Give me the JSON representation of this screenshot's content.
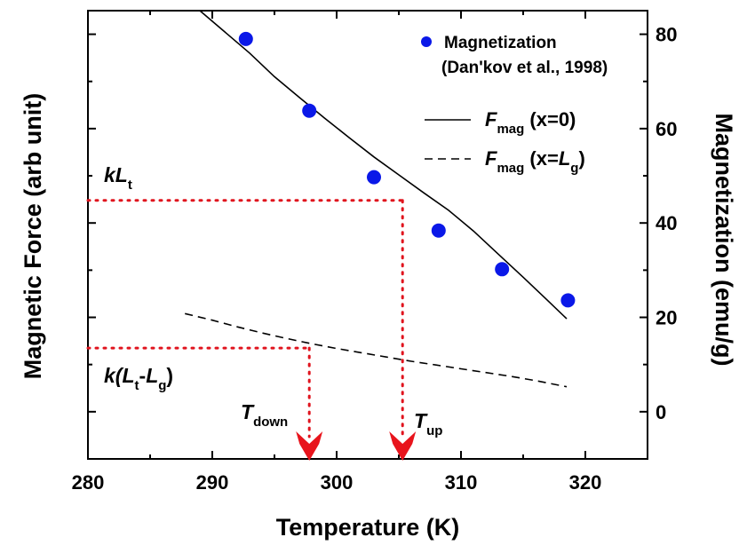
{
  "chart_data": {
    "type": "line",
    "xlabel": "Temperature (K)",
    "ylabel_left": "Magnetic Force (arb unit)",
    "ylabel_right": "Magnetization (emu/g)",
    "xlim": [
      280,
      325
    ],
    "ylim_right": [
      -10,
      85
    ],
    "x_ticks": [
      280,
      290,
      300,
      310,
      320
    ],
    "y_right_ticks": [
      0,
      20,
      40,
      60,
      80
    ],
    "series": [
      {
        "name": "Magnetization",
        "source": "(Dan'kov et al., 1998)",
        "kind": "scatter",
        "color": "#0a18e8",
        "x": [
          292.7,
          297.8,
          303.0,
          308.2,
          313.3,
          318.6
        ],
        "y": [
          79.0,
          63.8,
          49.7,
          38.4,
          30.2,
          23.6
        ]
      },
      {
        "name": "F_mag (x=0)",
        "kind": "line",
        "style": "solid",
        "x": [
          289.0,
          291.0,
          293.0,
          295.0,
          297.0,
          299.0,
          301.0,
          303.0,
          305.0,
          307.0,
          309.0,
          311.0,
          313.0,
          315.0,
          317.0,
          318.5
        ],
        "y": [
          85.0,
          80.5,
          76.0,
          71.0,
          66.6,
          62.3,
          58.1,
          54.0,
          50.2,
          46.4,
          42.7,
          38.3,
          33.4,
          28.5,
          23.5,
          19.7
        ]
      },
      {
        "name": "F_mag (x=L_g)",
        "kind": "line",
        "style": "dashed",
        "x": [
          287.8,
          290.0,
          292.0,
          294.0,
          296.0,
          298.0,
          300.0,
          302.0,
          304.0,
          306.0,
          308.0,
          310.0,
          312.0,
          314.0,
          316.0,
          318.5
        ],
        "y": [
          20.8,
          19.4,
          18.0,
          16.7,
          15.5,
          14.4,
          13.4,
          12.5,
          11.6,
          10.7,
          9.9,
          9.1,
          8.3,
          7.5,
          6.6,
          5.3
        ]
      }
    ],
    "reference_lines": [
      {
        "label": "kLt",
        "y": 44.8,
        "x_end": 305.3
      },
      {
        "label": "k(Lt-Lg)",
        "y": 13.5,
        "x_end": 297.8
      }
    ],
    "arrows": [
      {
        "label": "Tdown",
        "x": 297.8
      },
      {
        "label": "Tup",
        "x": 305.3
      }
    ],
    "colors": {
      "points": "#0a18e8",
      "reference": "#e0141e",
      "arrow": "#e8141c"
    }
  },
  "text": {
    "legend_magnetization": "Magnetization",
    "legend_source": "(Dan'kov et al., 1998)",
    "legend_F": "F",
    "legend_mag_sub": "mag",
    "legend_x0": " (x=0)",
    "legend_xLg_open": " (x=",
    "legend_L": "L",
    "legend_g": "g",
    "legend_close": ")",
    "kLt_k": "kL",
    "kLt_t": "t",
    "kLtLg_k": "k(",
    "kLtLg_L1": "L",
    "kLtLg_t": "t",
    "kLtLg_dash": "-",
    "kLtLg_L2": "L",
    "kLtLg_g": "g",
    "kLtLg_close": ")",
    "tdown_T": "T",
    "tdown_sub": "down",
    "tup_T": "T",
    "tup_sub": "up"
  }
}
